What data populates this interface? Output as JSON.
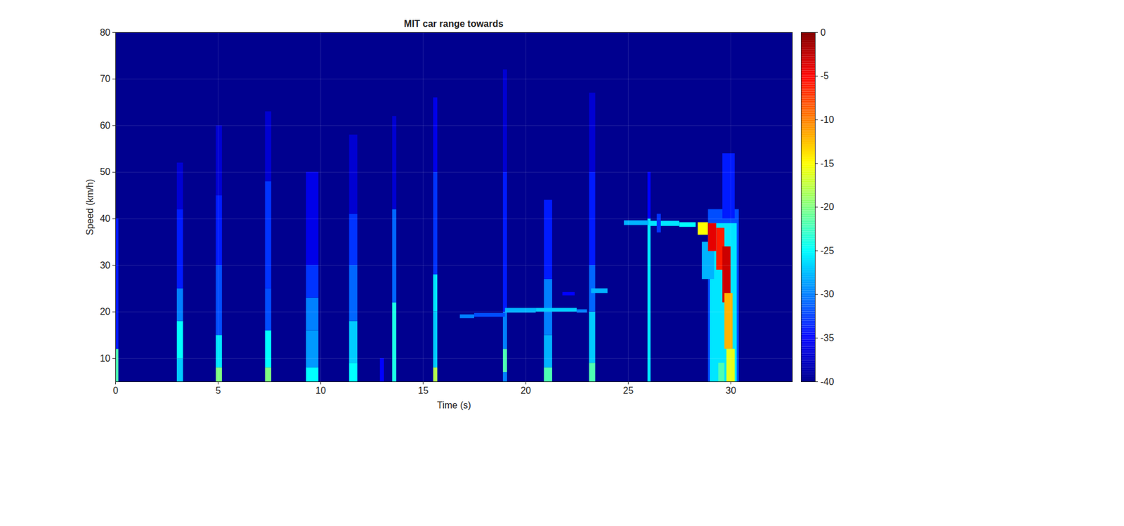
{
  "chart_data": {
    "type": "heatmap",
    "title": "MIT car range towards",
    "xlabel": "Time (s)",
    "ylabel": "Speed (km/h)",
    "xlim": [
      0,
      33
    ],
    "ylim": [
      5,
      80
    ],
    "xticks": [
      0,
      5,
      10,
      15,
      20,
      25,
      30
    ],
    "yticks": [
      10,
      20,
      30,
      40,
      50,
      60,
      70,
      80
    ],
    "grid": true,
    "colorbar": {
      "range": [
        -40,
        0
      ],
      "ticks": [
        0,
        -5,
        -10,
        -15,
        -20,
        -25,
        -30,
        -35,
        -40
      ]
    },
    "cells": [
      {
        "t": [
          0,
          33
        ],
        "s": [
          5,
          80
        ],
        "v": -40
      },
      {
        "t": [
          0,
          0.15
        ],
        "s": [
          5,
          12
        ],
        "v": -22
      },
      {
        "t": [
          0,
          0.15
        ],
        "s": [
          12,
          40
        ],
        "v": -34
      },
      {
        "t": [
          3.0,
          3.3
        ],
        "s": [
          5,
          10
        ],
        "v": -27
      },
      {
        "t": [
          3.0,
          3.3
        ],
        "s": [
          10,
          18
        ],
        "v": -25
      },
      {
        "t": [
          3.0,
          3.3
        ],
        "s": [
          18,
          25
        ],
        "v": -30
      },
      {
        "t": [
          3.0,
          3.3
        ],
        "s": [
          25,
          42
        ],
        "v": -34
      },
      {
        "t": [
          3.0,
          3.3
        ],
        "s": [
          42,
          52
        ],
        "v": -37
      },
      {
        "t": [
          4.9,
          5.2
        ],
        "s": [
          5,
          8
        ],
        "v": -20
      },
      {
        "t": [
          4.9,
          5.2
        ],
        "s": [
          8,
          15
        ],
        "v": -26
      },
      {
        "t": [
          4.9,
          5.2
        ],
        "s": [
          15,
          30
        ],
        "v": -32
      },
      {
        "t": [
          4.9,
          5.2
        ],
        "s": [
          30,
          45
        ],
        "v": -34
      },
      {
        "t": [
          4.9,
          5.2
        ],
        "s": [
          45,
          60
        ],
        "v": -37
      },
      {
        "t": [
          7.3,
          7.6
        ],
        "s": [
          5,
          8
        ],
        "v": -20
      },
      {
        "t": [
          7.3,
          7.6
        ],
        "s": [
          8,
          16
        ],
        "v": -25
      },
      {
        "t": [
          7.3,
          7.6
        ],
        "s": [
          16,
          25
        ],
        "v": -32
      },
      {
        "t": [
          7.3,
          7.6
        ],
        "s": [
          25,
          48
        ],
        "v": -33
      },
      {
        "t": [
          7.3,
          7.6
        ],
        "s": [
          48,
          63
        ],
        "v": -37
      },
      {
        "t": [
          9.3,
          9.9
        ],
        "s": [
          5,
          8
        ],
        "v": -25
      },
      {
        "t": [
          9.3,
          9.9
        ],
        "s": [
          8,
          16
        ],
        "v": -29
      },
      {
        "t": [
          9.3,
          9.9
        ],
        "s": [
          16,
          23
        ],
        "v": -30
      },
      {
        "t": [
          9.3,
          9.9
        ],
        "s": [
          23,
          30
        ],
        "v": -33
      },
      {
        "t": [
          9.3,
          9.9
        ],
        "s": [
          30,
          50
        ],
        "v": -36
      },
      {
        "t": [
          11.4,
          11.8
        ],
        "s": [
          5,
          9
        ],
        "v": -25
      },
      {
        "t": [
          11.4,
          11.8
        ],
        "s": [
          9,
          18
        ],
        "v": -27
      },
      {
        "t": [
          11.4,
          11.8
        ],
        "s": [
          18,
          30
        ],
        "v": -31
      },
      {
        "t": [
          11.4,
          11.8
        ],
        "s": [
          30,
          41
        ],
        "v": -33
      },
      {
        "t": [
          11.4,
          11.8
        ],
        "s": [
          41,
          58
        ],
        "v": -37
      },
      {
        "t": [
          12.9,
          13.1
        ],
        "s": [
          5,
          10
        ],
        "v": -35
      },
      {
        "t": [
          13.5,
          13.7
        ],
        "s": [
          5,
          22
        ],
        "v": -24
      },
      {
        "t": [
          13.5,
          13.7
        ],
        "s": [
          22,
          42
        ],
        "v": -31
      },
      {
        "t": [
          13.5,
          13.7
        ],
        "s": [
          42,
          62
        ],
        "v": -37
      },
      {
        "t": [
          15.5,
          15.7
        ],
        "s": [
          5,
          8
        ],
        "v": -18
      },
      {
        "t": [
          15.5,
          15.7
        ],
        "s": [
          8,
          20
        ],
        "v": -27
      },
      {
        "t": [
          15.5,
          15.7
        ],
        "s": [
          20,
          28
        ],
        "v": -26
      },
      {
        "t": [
          15.5,
          15.7
        ],
        "s": [
          28,
          50
        ],
        "v": -33
      },
      {
        "t": [
          15.5,
          15.7
        ],
        "s": [
          50,
          66
        ],
        "v": -36
      },
      {
        "t": [
          18.9,
          19.1
        ],
        "s": [
          5,
          7
        ],
        "v": -30
      },
      {
        "t": [
          18.9,
          19.1
        ],
        "s": [
          7,
          12
        ],
        "v": -22
      },
      {
        "t": [
          18.9,
          19.1
        ],
        "s": [
          12,
          20
        ],
        "v": -30
      },
      {
        "t": [
          18.9,
          19.1
        ],
        "s": [
          20,
          50
        ],
        "v": -34
      },
      {
        "t": [
          18.9,
          19.1
        ],
        "s": [
          50,
          72
        ],
        "v": -37
      },
      {
        "t": [
          20.9,
          21.3
        ],
        "s": [
          5,
          8
        ],
        "v": -22
      },
      {
        "t": [
          20.9,
          21.3
        ],
        "s": [
          8,
          15
        ],
        "v": -28
      },
      {
        "t": [
          20.9,
          21.3
        ],
        "s": [
          15,
          27
        ],
        "v": -30
      },
      {
        "t": [
          20.9,
          21.3
        ],
        "s": [
          27,
          44
        ],
        "v": -34
      },
      {
        "t": [
          23.1,
          23.4
        ],
        "s": [
          5,
          9
        ],
        "v": -22
      },
      {
        "t": [
          23.1,
          23.4
        ],
        "s": [
          9,
          20
        ],
        "v": -27
      },
      {
        "t": [
          23.1,
          23.4
        ],
        "s": [
          20,
          30
        ],
        "v": -31
      },
      {
        "t": [
          23.1,
          23.4
        ],
        "s": [
          30,
          50
        ],
        "v": -34
      },
      {
        "t": [
          23.1,
          23.4
        ],
        "s": [
          50,
          67
        ],
        "v": -37
      },
      {
        "t": [
          25.95,
          26.1
        ],
        "s": [
          5,
          40
        ],
        "v": -26
      },
      {
        "t": [
          25.95,
          26.1
        ],
        "s": [
          40,
          50
        ],
        "v": -35
      },
      {
        "t": [
          16.8,
          17.5
        ],
        "s": [
          18.6,
          19.4
        ],
        "v": -30
      },
      {
        "t": [
          17.5,
          19.0
        ],
        "s": [
          18.9,
          19.7
        ],
        "v": -32
      },
      {
        "t": [
          19.0,
          20.5
        ],
        "s": [
          19.8,
          20.8
        ],
        "v": -28
      },
      {
        "t": [
          20.5,
          22.5
        ],
        "s": [
          20.0,
          20.8
        ],
        "v": -27
      },
      {
        "t": [
          22.5,
          23.0
        ],
        "s": [
          19.8,
          20.5
        ],
        "v": -30
      },
      {
        "t": [
          21.8,
          22.4
        ],
        "s": [
          23.5,
          24.2
        ],
        "v": -35
      },
      {
        "t": [
          23.2,
          24.0
        ],
        "s": [
          24.0,
          25.0
        ],
        "v": -28
      },
      {
        "t": [
          24.8,
          26.0
        ],
        "s": [
          38.6,
          39.6
        ],
        "v": -28
      },
      {
        "t": [
          26.0,
          27.5
        ],
        "s": [
          38.4,
          39.5
        ],
        "v": -26
      },
      {
        "t": [
          26.4,
          26.6
        ],
        "s": [
          37.0,
          41.0
        ],
        "v": -33
      },
      {
        "t": [
          27.5,
          28.3
        ],
        "s": [
          38.2,
          39.2
        ],
        "v": -25
      },
      {
        "t": [
          28.9,
          30.4
        ],
        "s": [
          5,
          42
        ],
        "v": -32
      },
      {
        "t": [
          29.0,
          30.3
        ],
        "s": [
          5,
          39
        ],
        "v": -26
      },
      {
        "t": [
          29.6,
          30.2
        ],
        "s": [
          40,
          54
        ],
        "v": -34
      },
      {
        "t": [
          28.6,
          29.2
        ],
        "s": [
          27,
          35
        ],
        "v": -28
      },
      {
        "t": [
          28.4,
          28.9
        ],
        "s": [
          36.5,
          39.2
        ],
        "v": -15
      },
      {
        "t": [
          28.9,
          29.3
        ],
        "s": [
          33,
          39
        ],
        "v": -4
      },
      {
        "t": [
          29.3,
          29.7
        ],
        "s": [
          29,
          38
        ],
        "v": -6
      },
      {
        "t": [
          29.6,
          30.0
        ],
        "s": [
          22,
          34
        ],
        "v": -3
      },
      {
        "t": [
          29.7,
          30.1
        ],
        "s": [
          12,
          24
        ],
        "v": -12
      },
      {
        "t": [
          29.8,
          30.2
        ],
        "s": [
          5,
          12
        ],
        "v": -16
      },
      {
        "t": [
          29.4,
          29.7
        ],
        "s": [
          5,
          9
        ],
        "v": -22
      }
    ]
  }
}
